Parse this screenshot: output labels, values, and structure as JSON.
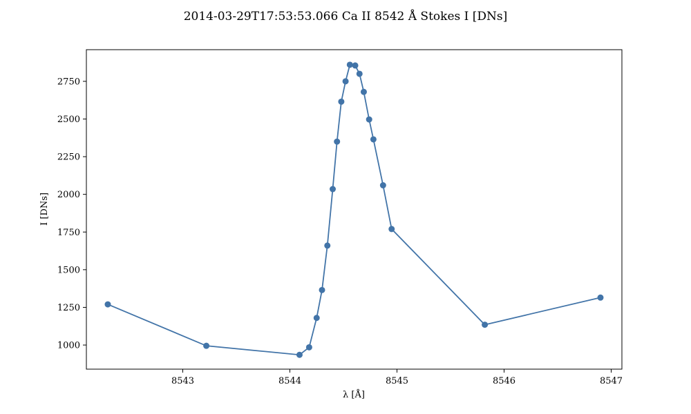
{
  "chart_data": {
    "type": "line",
    "title": "2014-03-29T17:53:53.066 Ca II 8542 Å Stokes I [DNs]",
    "xlabel": "λ [Å]",
    "ylabel": "I [DNs]",
    "xlim": [
      8542.1,
      8547.1
    ],
    "ylim": [
      840,
      2960
    ],
    "x_ticks": [
      8543,
      8544,
      8545,
      8546,
      8547
    ],
    "y_ticks": [
      1000,
      1250,
      1500,
      1750,
      2000,
      2250,
      2500,
      2750
    ],
    "grid": false,
    "series": [
      {
        "color": "#4274a8",
        "marker": "circle",
        "x": [
          8542.3,
          8543.22,
          8544.09,
          8544.18,
          8544.25,
          8544.3,
          8544.35,
          8544.4,
          8544.44,
          8544.48,
          8544.52,
          8544.56,
          8544.61,
          8544.65,
          8544.69,
          8544.74,
          8544.78,
          8544.87,
          8544.95,
          8545.82,
          8546.9
        ],
        "y": [
          1270,
          995,
          935,
          985,
          1180,
          1365,
          1660,
          2035,
          2350,
          2615,
          2750,
          2860,
          2855,
          2800,
          2680,
          2497,
          2365,
          2060,
          1770,
          1135,
          1315
        ]
      }
    ]
  }
}
